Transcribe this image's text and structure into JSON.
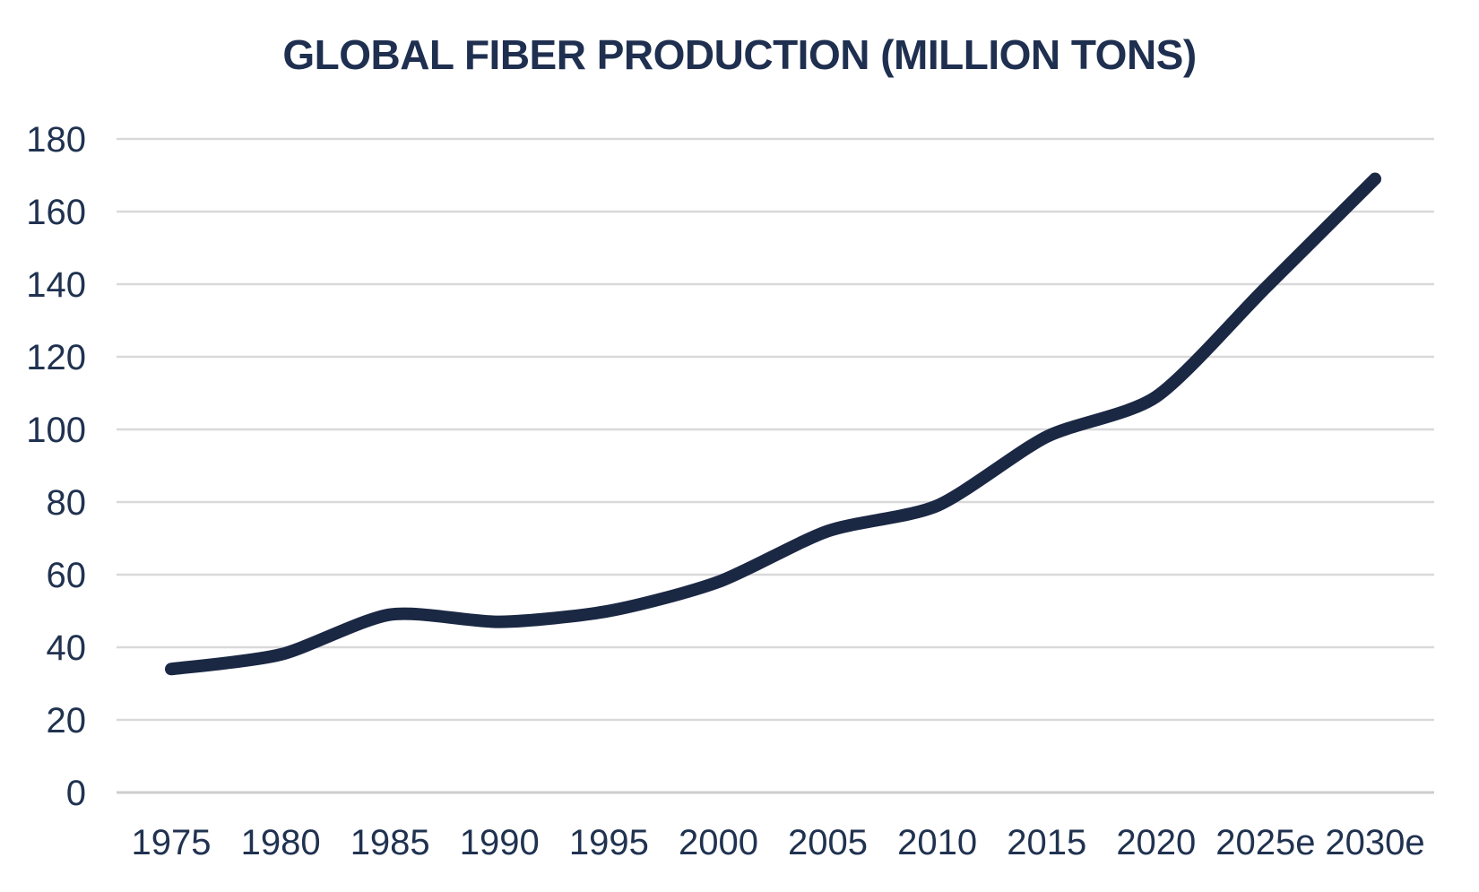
{
  "chart_data": {
    "type": "line",
    "title": "GLOBAL FIBER PRODUCTION (MILLION TONS)",
    "categories": [
      "1975",
      "1980",
      "1985",
      "1990",
      "1995",
      "2000",
      "2005",
      "2010",
      "2015",
      "2020",
      "2025e",
      "2030e"
    ],
    "values": [
      34,
      38,
      49,
      47,
      50,
      58,
      72,
      79,
      98,
      109,
      139,
      169
    ],
    "yticks": [
      0,
      20,
      40,
      60,
      80,
      100,
      120,
      140,
      160,
      180
    ],
    "ylim": [
      0,
      180
    ],
    "xlabel": "",
    "ylabel": "",
    "legend": "none",
    "grid": "horizontal",
    "smooth_line": true,
    "colors": {
      "line": "#1b2844",
      "tick_text": "#203250",
      "title_text": "#1f2f50",
      "gridline": "#d9d9d9",
      "axis_line": "#cdcdcd",
      "background": "#ffffff"
    }
  }
}
